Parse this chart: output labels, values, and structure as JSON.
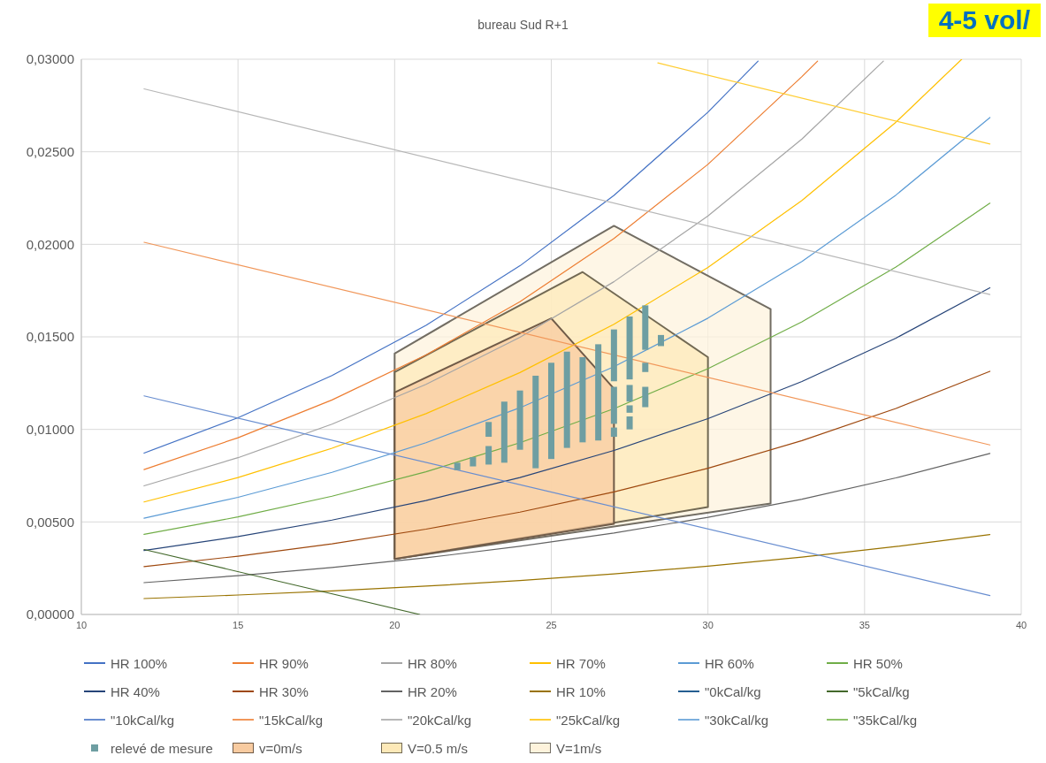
{
  "chart_data": {
    "type": "line",
    "title": "bureau Sud R+1",
    "annotations": [
      "4-5 vol/"
    ],
    "xlim": [
      10,
      40
    ],
    "xticks": [
      10,
      15,
      20,
      25,
      30,
      35,
      40
    ],
    "ylim": [
      0,
      0.03
    ],
    "yticks": [
      {
        "value": 0,
        "label": "0,00000"
      },
      {
        "value": 0.005,
        "label": "0,00500"
      },
      {
        "value": 0.01,
        "label": "0,01000"
      },
      {
        "value": 0.015,
        "label": "0,01500"
      },
      {
        "value": 0.02,
        "label": "0,02000"
      },
      {
        "value": 0.025,
        "label": "0,02500"
      },
      {
        "value": 0.03,
        "label": "0,03000"
      }
    ],
    "grid": true,
    "legend": "bottom",
    "line_style": "solid",
    "series": [
      {
        "name": "HR 100%",
        "color": "#4472c4",
        "x": [
          12,
          15,
          18,
          21,
          24,
          27,
          30,
          31.6
        ],
        "values": [
          0.00872,
          0.01063,
          0.01291,
          0.01562,
          0.01884,
          0.02264,
          0.02714,
          0.0299
        ]
      },
      {
        "name": "HR 90%",
        "color": "#ed7d31",
        "x": [
          12,
          15,
          18,
          21,
          24,
          27,
          30,
          33,
          33.5
        ],
        "values": [
          0.00783,
          0.00955,
          0.01159,
          0.01402,
          0.0169,
          0.02031,
          0.02432,
          0.02906,
          0.0299
        ]
      },
      {
        "name": "HR 80%",
        "color": "#a5a5a5",
        "x": [
          12,
          15,
          18,
          21,
          24,
          27,
          30,
          33,
          35.6
        ],
        "values": [
          0.00695,
          0.00847,
          0.01028,
          0.01243,
          0.01498,
          0.01798,
          0.02153,
          0.02569,
          0.0299
        ]
      },
      {
        "name": "HR 70%",
        "color": "#ffc000",
        "x": [
          12,
          15,
          18,
          21,
          24,
          27,
          30,
          33,
          36,
          38.1
        ],
        "values": [
          0.00608,
          0.0074,
          0.00898,
          0.01085,
          0.01307,
          0.01568,
          0.01875,
          0.02237,
          0.0266,
          0.03
        ]
      },
      {
        "name": "HR 60%",
        "color": "#5b9bd5",
        "x": [
          12,
          15,
          18,
          21,
          24,
          27,
          30,
          33,
          36,
          39
        ],
        "values": [
          0.0052,
          0.00633,
          0.00768,
          0.00928,
          0.01117,
          0.01339,
          0.01601,
          0.01907,
          0.02266,
          0.02685
        ]
      },
      {
        "name": "HR 50%",
        "color": "#70ad47",
        "x": [
          12,
          15,
          18,
          21,
          24,
          27,
          30,
          33,
          36,
          39
        ],
        "values": [
          0.00433,
          0.00527,
          0.00639,
          0.00771,
          0.00928,
          0.01112,
          0.01328,
          0.01581,
          0.01877,
          0.02222
        ]
      },
      {
        "name": "HR 40%",
        "color": "#264478",
        "x": [
          12,
          15,
          18,
          21,
          24,
          27,
          30,
          33,
          36,
          39
        ],
        "values": [
          0.00346,
          0.00421,
          0.0051,
          0.00616,
          0.0074,
          0.00886,
          0.01058,
          0.01259,
          0.01493,
          0.01765
        ]
      },
      {
        "name": "HR 30%",
        "color": "#9e480e",
        "x": [
          12,
          15,
          18,
          21,
          24,
          27,
          30,
          33,
          36,
          39
        ],
        "values": [
          0.00259,
          0.00315,
          0.00382,
          0.00461,
          0.00553,
          0.00662,
          0.0079,
          0.00939,
          0.01113,
          0.01314
        ]
      },
      {
        "name": "HR 20%",
        "color": "#636363",
        "x": [
          12,
          15,
          18,
          21,
          24,
          27,
          30,
          33,
          36,
          39
        ],
        "values": [
          0.00172,
          0.0021,
          0.00254,
          0.00306,
          0.00368,
          0.0044,
          0.00525,
          0.00623,
          0.00738,
          0.0087
        ]
      },
      {
        "name": "HR 10%",
        "color": "#997300",
        "x": [
          12,
          15,
          18,
          21,
          24,
          27,
          30,
          33,
          36,
          39
        ],
        "values": [
          0.00086,
          0.00105,
          0.00127,
          0.00153,
          0.00183,
          0.00219,
          0.00261,
          0.0031,
          0.00367,
          0.00432
        ]
      },
      {
        "name": "\"0kCal/kg",
        "color": "#255e91"
      },
      {
        "name": "\"5kCal/kg",
        "color": "#43682b",
        "x": [
          12,
          20.8
        ],
        "values": [
          0.00351,
          0
        ]
      },
      {
        "name": "\"10kCal/kg",
        "color": "#698ed0",
        "x": [
          12,
          39
        ],
        "values": [
          0.01181,
          0.00102
        ]
      },
      {
        "name": "\"15kCal/kg",
        "color": "#f1975a",
        "x": [
          12,
          39
        ],
        "values": [
          0.02011,
          0.00916
        ]
      },
      {
        "name": "\"20kCal/kg",
        "color": "#b7b7b7",
        "x": [
          12,
          39
        ],
        "values": [
          0.0284,
          0.01729
        ]
      },
      {
        "name": "\"25kCal/kg",
        "color": "#ffcd33",
        "x": [
          28.4,
          39
        ],
        "values": [
          0.0298,
          0.02542
        ]
      },
      {
        "name": "\"30kCal/kg",
        "color": "#7cafdd"
      },
      {
        "name": "\"35kCal/kg",
        "color": "#8cc168"
      },
      {
        "name": "relevé de mesure",
        "type": "bar",
        "color": "#6e9ea2",
        "x": [
          22,
          22.5,
          23,
          23.5,
          24,
          24.5,
          25,
          25.5,
          26,
          26.5,
          27,
          27.5,
          28,
          28.5
        ],
        "base": [
          0.0078,
          0.008,
          0.0081,
          0.0082,
          0.0089,
          0.0079,
          0.0084,
          0.009,
          0.0093,
          0.0094,
          0.0096,
          0.01,
          0.0112,
          0.0145
        ],
        "values": [
          0.0004,
          0.0005,
          0.001,
          0.0033,
          0.0032,
          0.005,
          0.0052,
          0.0052,
          0.0046,
          0.0052,
          0.0005,
          0.0007,
          0.0011,
          0.0006
        ]
      },
      {
        "type": "bar",
        "color": "#6e9ea2",
        "x": [
          23,
          27,
          27.5,
          28
        ],
        "base": [
          0.0096,
          0.0103,
          0.0109,
          0.0131
        ],
        "values": [
          0.0008,
          0.002,
          0.0004,
          0.0005
        ]
      },
      {
        "type": "bar",
        "color": "#6e9ea2",
        "x": [
          27,
          27.5,
          28
        ],
        "base": [
          0.0126,
          0.0115,
          0.0143
        ],
        "values": [
          0.0028,
          0.0009,
          0.0024
        ]
      },
      {
        "type": "bar",
        "color": "#6e9ea2",
        "x": [
          27.5
        ],
        "base": [
          0.0127
        ],
        "values": [
          0.0034
        ]
      },
      {
        "name": "v=0m/s",
        "type": "area",
        "color": "#f8cba0",
        "x": [
          20,
          20,
          25,
          27,
          27,
          20
        ],
        "values": [
          0.003,
          0.012,
          0.016,
          0.0122,
          0.0049,
          0.003
        ]
      },
      {
        "name": "V=0.5 m/s",
        "type": "area",
        "color": "#fde9b8",
        "x": [
          20,
          20,
          26,
          30,
          30,
          20
        ],
        "values": [
          0.003,
          0.0131,
          0.0185,
          0.0139,
          0.0058,
          0.003
        ]
      },
      {
        "name": "V=1m/s",
        "type": "area",
        "color": "#fef3dc",
        "x": [
          20,
          20,
          27,
          32,
          32,
          20
        ],
        "values": [
          0.003,
          0.0141,
          0.021,
          0.0165,
          0.006,
          0.003
        ]
      }
    ]
  }
}
